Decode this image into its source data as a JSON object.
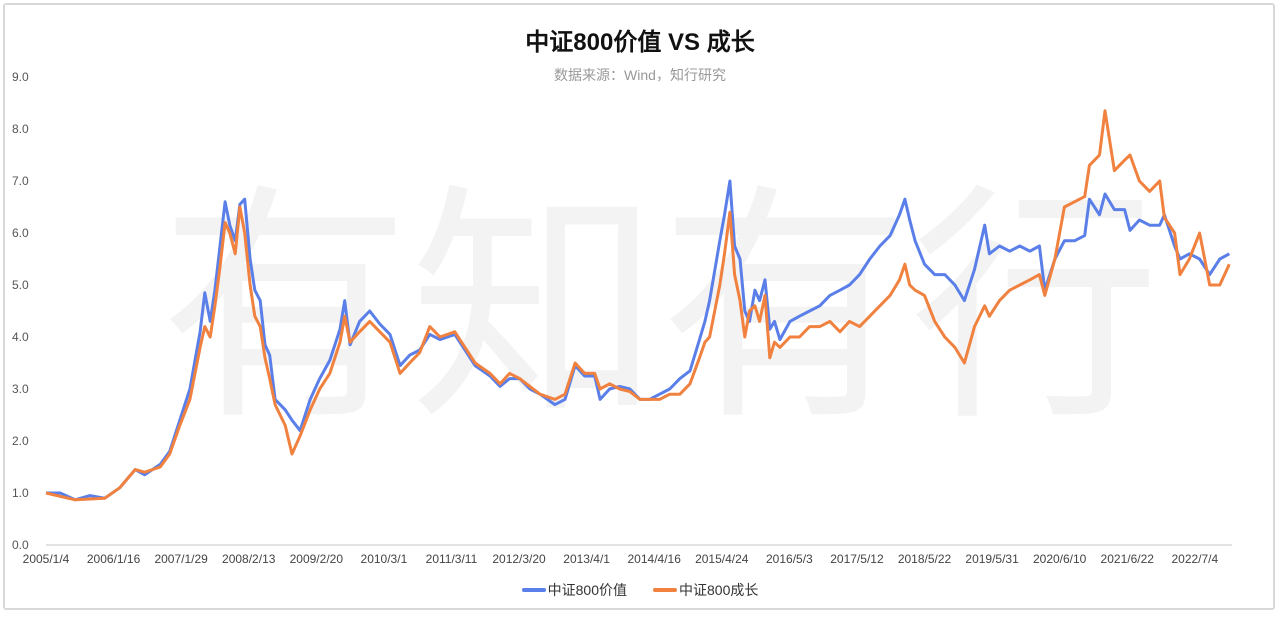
{
  "chart_data": {
    "type": "line",
    "title": "中证800价值 VS 成长",
    "subtitle": "数据来源：Wind，知行研究",
    "watermark": "有知有行",
    "xlabel": "",
    "ylabel": "",
    "ylim": [
      0,
      9
    ],
    "yticks": [
      "0.0",
      "1.0",
      "2.0",
      "3.0",
      "4.0",
      "5.0",
      "6.0",
      "7.0",
      "8.0",
      "9.0"
    ],
    "x_unit": "years since 2005/1/4 (tick index)",
    "xticks": [
      "2005/1/4",
      "2006/1/16",
      "2007/1/29",
      "2008/2/13",
      "2009/2/20",
      "2010/3/1",
      "2011/3/11",
      "2012/3/20",
      "2013/4/1",
      "2014/4/16",
      "2015/4/24",
      "2016/5/3",
      "2017/5/12",
      "2018/5/22",
      "2019/5/31",
      "2020/6/10",
      "2021/6/22",
      "2022/7/4"
    ],
    "xlim": [
      0,
      17.55
    ],
    "grid": false,
    "legend": "bottom",
    "series": [
      {
        "name": "中证800价值",
        "color": "#5b7fe8",
        "points": [
          [
            0,
            1.0
          ],
          [
            0.21,
            1.0
          ],
          [
            0.43,
            0.87
          ],
          [
            0.65,
            0.95
          ],
          [
            0.87,
            0.9
          ],
          [
            1.09,
            1.1
          ],
          [
            1.32,
            1.45
          ],
          [
            1.46,
            1.35
          ],
          [
            1.69,
            1.55
          ],
          [
            1.83,
            1.8
          ],
          [
            1.98,
            2.4
          ],
          [
            2.13,
            3.0
          ],
          [
            2.28,
            4.1
          ],
          [
            2.35,
            4.85
          ],
          [
            2.43,
            4.3
          ],
          [
            2.5,
            4.9
          ],
          [
            2.57,
            5.7
          ],
          [
            2.65,
            6.6
          ],
          [
            2.72,
            6.15
          ],
          [
            2.8,
            5.85
          ],
          [
            2.87,
            6.55
          ],
          [
            2.94,
            6.65
          ],
          [
            3.02,
            5.5
          ],
          [
            3.09,
            4.9
          ],
          [
            3.17,
            4.7
          ],
          [
            3.24,
            3.85
          ],
          [
            3.31,
            3.65
          ],
          [
            3.39,
            2.8
          ],
          [
            3.54,
            2.6
          ],
          [
            3.64,
            2.4
          ],
          [
            3.76,
            2.2
          ],
          [
            3.91,
            2.8
          ],
          [
            4.05,
            3.2
          ],
          [
            4.2,
            3.55
          ],
          [
            4.35,
            4.15
          ],
          [
            4.42,
            4.7
          ],
          [
            4.5,
            3.85
          ],
          [
            4.64,
            4.3
          ],
          [
            4.79,
            4.5
          ],
          [
            4.94,
            4.25
          ],
          [
            5.09,
            4.05
          ],
          [
            5.24,
            3.45
          ],
          [
            5.38,
            3.65
          ],
          [
            5.53,
            3.75
          ],
          [
            5.68,
            4.05
          ],
          [
            5.83,
            3.95
          ],
          [
            6.05,
            4.05
          ],
          [
            6.2,
            3.75
          ],
          [
            6.35,
            3.45
          ],
          [
            6.57,
            3.25
          ],
          [
            6.72,
            3.05
          ],
          [
            6.86,
            3.2
          ],
          [
            7.01,
            3.2
          ],
          [
            7.16,
            3.0
          ],
          [
            7.31,
            2.9
          ],
          [
            7.53,
            2.7
          ],
          [
            7.68,
            2.8
          ],
          [
            7.83,
            3.45
          ],
          [
            7.97,
            3.25
          ],
          [
            8.12,
            3.25
          ],
          [
            8.2,
            2.8
          ],
          [
            8.34,
            3.0
          ],
          [
            8.49,
            3.05
          ],
          [
            8.64,
            3.0
          ],
          [
            8.79,
            2.8
          ],
          [
            8.93,
            2.8
          ],
          [
            9.08,
            2.9
          ],
          [
            9.23,
            3.0
          ],
          [
            9.38,
            3.2
          ],
          [
            9.53,
            3.35
          ],
          [
            9.67,
            3.95
          ],
          [
            9.75,
            4.3
          ],
          [
            9.82,
            4.7
          ],
          [
            9.97,
            5.85
          ],
          [
            10.04,
            6.35
          ],
          [
            10.12,
            7.0
          ],
          [
            10.19,
            5.75
          ],
          [
            10.27,
            5.5
          ],
          [
            10.34,
            4.5
          ],
          [
            10.41,
            4.3
          ],
          [
            10.49,
            4.9
          ],
          [
            10.56,
            4.7
          ],
          [
            10.64,
            5.1
          ],
          [
            10.71,
            4.15
          ],
          [
            10.78,
            4.3
          ],
          [
            10.86,
            3.95
          ],
          [
            11.01,
            4.3
          ],
          [
            11.15,
            4.4
          ],
          [
            11.3,
            4.5
          ],
          [
            11.45,
            4.6
          ],
          [
            11.6,
            4.8
          ],
          [
            11.75,
            4.9
          ],
          [
            11.89,
            5.0
          ],
          [
            12.04,
            5.2
          ],
          [
            12.19,
            5.5
          ],
          [
            12.34,
            5.75
          ],
          [
            12.49,
            5.95
          ],
          [
            12.63,
            6.35
          ],
          [
            12.71,
            6.65
          ],
          [
            12.78,
            6.25
          ],
          [
            12.86,
            5.85
          ],
          [
            13.0,
            5.4
          ],
          [
            13.15,
            5.2
          ],
          [
            13.3,
            5.2
          ],
          [
            13.45,
            5.0
          ],
          [
            13.59,
            4.7
          ],
          [
            13.74,
            5.3
          ],
          [
            13.89,
            6.15
          ],
          [
            13.96,
            5.6
          ],
          [
            14.11,
            5.75
          ],
          [
            14.26,
            5.65
          ],
          [
            14.41,
            5.75
          ],
          [
            14.56,
            5.65
          ],
          [
            14.7,
            5.75
          ],
          [
            14.78,
            4.9
          ],
          [
            14.93,
            5.5
          ],
          [
            15.07,
            5.85
          ],
          [
            15.22,
            5.85
          ],
          [
            15.37,
            5.95
          ],
          [
            15.44,
            6.65
          ],
          [
            15.59,
            6.35
          ],
          [
            15.67,
            6.75
          ],
          [
            15.81,
            6.45
          ],
          [
            15.96,
            6.45
          ],
          [
            16.04,
            6.05
          ],
          [
            16.18,
            6.25
          ],
          [
            16.33,
            6.15
          ],
          [
            16.48,
            6.15
          ],
          [
            16.55,
            6.35
          ],
          [
            16.7,
            5.75
          ],
          [
            16.78,
            5.5
          ],
          [
            16.92,
            5.6
          ],
          [
            17.07,
            5.5
          ],
          [
            17.22,
            5.2
          ],
          [
            17.37,
            5.5
          ],
          [
            17.51,
            5.6
          ]
        ]
      },
      {
        "name": "中证800成长",
        "color": "#f0813f",
        "points": [
          [
            0,
            1.0
          ],
          [
            0.43,
            0.87
          ],
          [
            0.87,
            0.9
          ],
          [
            1.09,
            1.1
          ],
          [
            1.32,
            1.45
          ],
          [
            1.46,
            1.4
          ],
          [
            1.69,
            1.5
          ],
          [
            1.83,
            1.75
          ],
          [
            1.98,
            2.3
          ],
          [
            2.13,
            2.8
          ],
          [
            2.28,
            3.8
          ],
          [
            2.35,
            4.2
          ],
          [
            2.43,
            4.0
          ],
          [
            2.5,
            4.6
          ],
          [
            2.57,
            5.3
          ],
          [
            2.65,
            6.2
          ],
          [
            2.72,
            6.0
          ],
          [
            2.8,
            5.6
          ],
          [
            2.87,
            6.5
          ],
          [
            2.94,
            6.0
          ],
          [
            3.02,
            5.0
          ],
          [
            3.09,
            4.4
          ],
          [
            3.17,
            4.2
          ],
          [
            3.24,
            3.6
          ],
          [
            3.31,
            3.2
          ],
          [
            3.39,
            2.7
          ],
          [
            3.54,
            2.3
          ],
          [
            3.64,
            1.75
          ],
          [
            3.76,
            2.1
          ],
          [
            3.91,
            2.6
          ],
          [
            4.05,
            3.0
          ],
          [
            4.2,
            3.3
          ],
          [
            4.35,
            3.9
          ],
          [
            4.42,
            4.4
          ],
          [
            4.5,
            3.9
          ],
          [
            4.64,
            4.1
          ],
          [
            4.79,
            4.3
          ],
          [
            4.94,
            4.1
          ],
          [
            5.09,
            3.9
          ],
          [
            5.24,
            3.3
          ],
          [
            5.38,
            3.5
          ],
          [
            5.53,
            3.7
          ],
          [
            5.68,
            4.2
          ],
          [
            5.83,
            4.0
          ],
          [
            6.05,
            4.1
          ],
          [
            6.2,
            3.8
          ],
          [
            6.35,
            3.5
          ],
          [
            6.57,
            3.3
          ],
          [
            6.72,
            3.1
          ],
          [
            6.86,
            3.3
          ],
          [
            7.01,
            3.2
          ],
          [
            7.16,
            3.05
          ],
          [
            7.31,
            2.9
          ],
          [
            7.53,
            2.8
          ],
          [
            7.68,
            2.9
          ],
          [
            7.83,
            3.5
          ],
          [
            7.97,
            3.3
          ],
          [
            8.12,
            3.3
          ],
          [
            8.2,
            3.0
          ],
          [
            8.34,
            3.1
          ],
          [
            8.49,
            3.0
          ],
          [
            8.64,
            2.95
          ],
          [
            8.79,
            2.8
          ],
          [
            8.93,
            2.8
          ],
          [
            9.08,
            2.8
          ],
          [
            9.23,
            2.9
          ],
          [
            9.38,
            2.9
          ],
          [
            9.53,
            3.1
          ],
          [
            9.67,
            3.6
          ],
          [
            9.75,
            3.9
          ],
          [
            9.82,
            4.0
          ],
          [
            9.97,
            5.0
          ],
          [
            10.04,
            5.6
          ],
          [
            10.12,
            6.4
          ],
          [
            10.19,
            5.2
          ],
          [
            10.27,
            4.7
          ],
          [
            10.34,
            4.0
          ],
          [
            10.41,
            4.5
          ],
          [
            10.49,
            4.6
          ],
          [
            10.56,
            4.3
          ],
          [
            10.64,
            4.8
          ],
          [
            10.71,
            3.6
          ],
          [
            10.78,
            3.9
          ],
          [
            10.86,
            3.8
          ],
          [
            11.01,
            4.0
          ],
          [
            11.15,
            4.0
          ],
          [
            11.3,
            4.2
          ],
          [
            11.45,
            4.2
          ],
          [
            11.6,
            4.3
          ],
          [
            11.75,
            4.1
          ],
          [
            11.89,
            4.3
          ],
          [
            12.04,
            4.2
          ],
          [
            12.19,
            4.4
          ],
          [
            12.34,
            4.6
          ],
          [
            12.49,
            4.8
          ],
          [
            12.63,
            5.1
          ],
          [
            12.71,
            5.4
          ],
          [
            12.78,
            5.0
          ],
          [
            12.86,
            4.9
          ],
          [
            13.0,
            4.8
          ],
          [
            13.15,
            4.3
          ],
          [
            13.3,
            4.0
          ],
          [
            13.45,
            3.8
          ],
          [
            13.59,
            3.5
          ],
          [
            13.74,
            4.2
          ],
          [
            13.89,
            4.6
          ],
          [
            13.96,
            4.4
          ],
          [
            14.11,
            4.7
          ],
          [
            14.26,
            4.9
          ],
          [
            14.41,
            5.0
          ],
          [
            14.56,
            5.1
          ],
          [
            14.7,
            5.2
          ],
          [
            14.78,
            4.8
          ],
          [
            14.93,
            5.5
          ],
          [
            15.07,
            6.5
          ],
          [
            15.22,
            6.6
          ],
          [
            15.37,
            6.7
          ],
          [
            15.44,
            7.3
          ],
          [
            15.59,
            7.5
          ],
          [
            15.67,
            8.35
          ],
          [
            15.81,
            7.2
          ],
          [
            15.96,
            7.4
          ],
          [
            16.04,
            7.5
          ],
          [
            16.18,
            7.0
          ],
          [
            16.33,
            6.8
          ],
          [
            16.48,
            7.0
          ],
          [
            16.55,
            6.3
          ],
          [
            16.7,
            6.0
          ],
          [
            16.78,
            5.2
          ],
          [
            16.92,
            5.5
          ],
          [
            17.07,
            6.0
          ],
          [
            17.22,
            5.0
          ],
          [
            17.37,
            5.0
          ],
          [
            17.51,
            5.4
          ]
        ]
      }
    ]
  }
}
